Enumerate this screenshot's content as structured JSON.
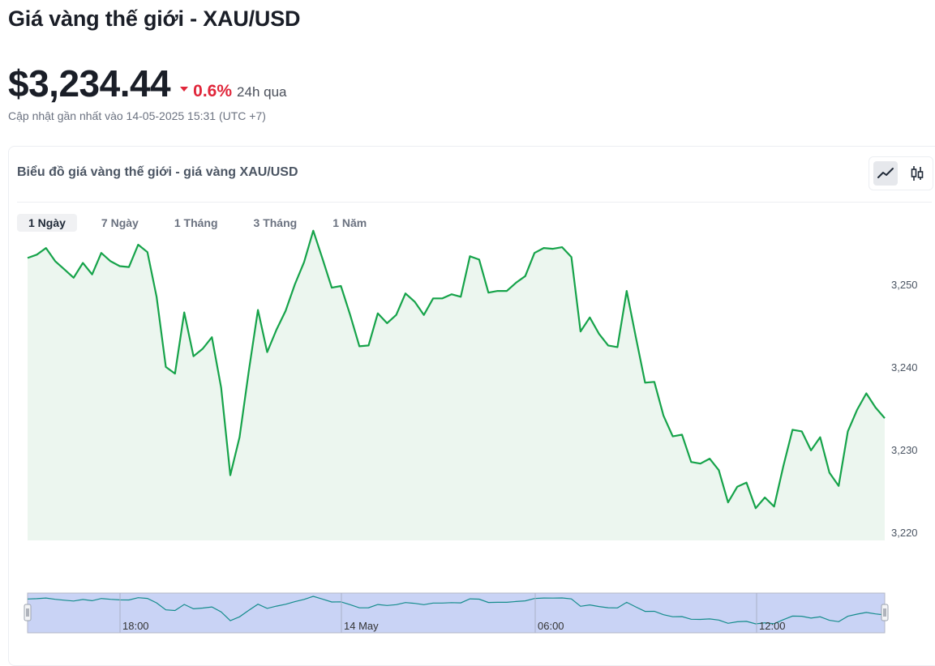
{
  "header": {
    "title": "Giá vàng thế giới - XAU/USD",
    "price": "$3,234.44",
    "change_pct": "0.6%",
    "change_period": "24h qua",
    "updated": "Cập nhật gần nhất vào 14-05-2025 15:31 (UTC +7)"
  },
  "card": {
    "title": "Biểu đồ giá vàng thế giới - giá vàng XAU/USD",
    "chart_modes": [
      {
        "name": "line-chart-icon",
        "active": true
      },
      {
        "name": "candlestick-icon",
        "active": false
      }
    ],
    "tabs": [
      {
        "label": "1 Ngày",
        "active": true
      },
      {
        "label": "7 Ngày",
        "active": false
      },
      {
        "label": "1 Tháng",
        "active": false
      },
      {
        "label": "3 Tháng",
        "active": false
      },
      {
        "label": "1 Năm",
        "active": false
      }
    ]
  },
  "colors": {
    "line": "#16a34a",
    "area_fill": "#ecf6ef",
    "down": "#e0263a",
    "navigator_fill": "#c9d3f5",
    "navigator_line": "#148c8c"
  },
  "chart_data": {
    "type": "area",
    "y_ticks": [
      3220,
      3230,
      3240,
      3250
    ],
    "y_tick_labels": [
      "3,220",
      "3,230",
      "3,240",
      "3,250"
    ],
    "ylim": [
      3219,
      3255
    ],
    "navigator_labels": [
      "18:00",
      "14 May",
      "06:00",
      "12:00"
    ],
    "grid": false,
    "legend": "none",
    "series": [
      {
        "values": [
          3253.2,
          3253.6,
          3254.4,
          3252.8,
          3251.8,
          3250.8,
          3252.6,
          3251.2,
          3253.8,
          3252.8,
          3252.2,
          3252.1,
          3254.8,
          3253.9,
          3248.5,
          3240.0,
          3239.2,
          3246.6,
          3241.3,
          3242.2,
          3243.6,
          3237.5,
          3226.9,
          3231.5,
          3239.5,
          3246.9,
          3241.8,
          3244.5,
          3246.8,
          3250.0,
          3252.7,
          3256.5,
          3253.1,
          3249.6,
          3249.8,
          3246.3,
          3242.5,
          3242.6,
          3246.5,
          3245.3,
          3246.3,
          3248.9,
          3247.9,
          3246.3,
          3248.3,
          3248.3,
          3248.8,
          3248.5,
          3253.4,
          3253.0,
          3249.0,
          3249.2,
          3249.2,
          3250.2,
          3251.0,
          3253.8,
          3254.4,
          3254.3,
          3254.5,
          3253.3,
          3244.3,
          3246.0,
          3244.0,
          3242.6,
          3242.4,
          3249.2,
          3243.6,
          3238.1,
          3238.2,
          3234.1,
          3231.6,
          3231.8,
          3228.5,
          3228.3,
          3228.9,
          3227.5,
          3223.6,
          3225.5,
          3226.0,
          3222.9,
          3224.2,
          3223.1,
          3228.0,
          3232.4,
          3232.2,
          3229.9,
          3231.5,
          3227.2,
          3225.6,
          3232.2,
          3234.8,
          3236.8,
          3235.1,
          3233.8
        ]
      }
    ]
  }
}
